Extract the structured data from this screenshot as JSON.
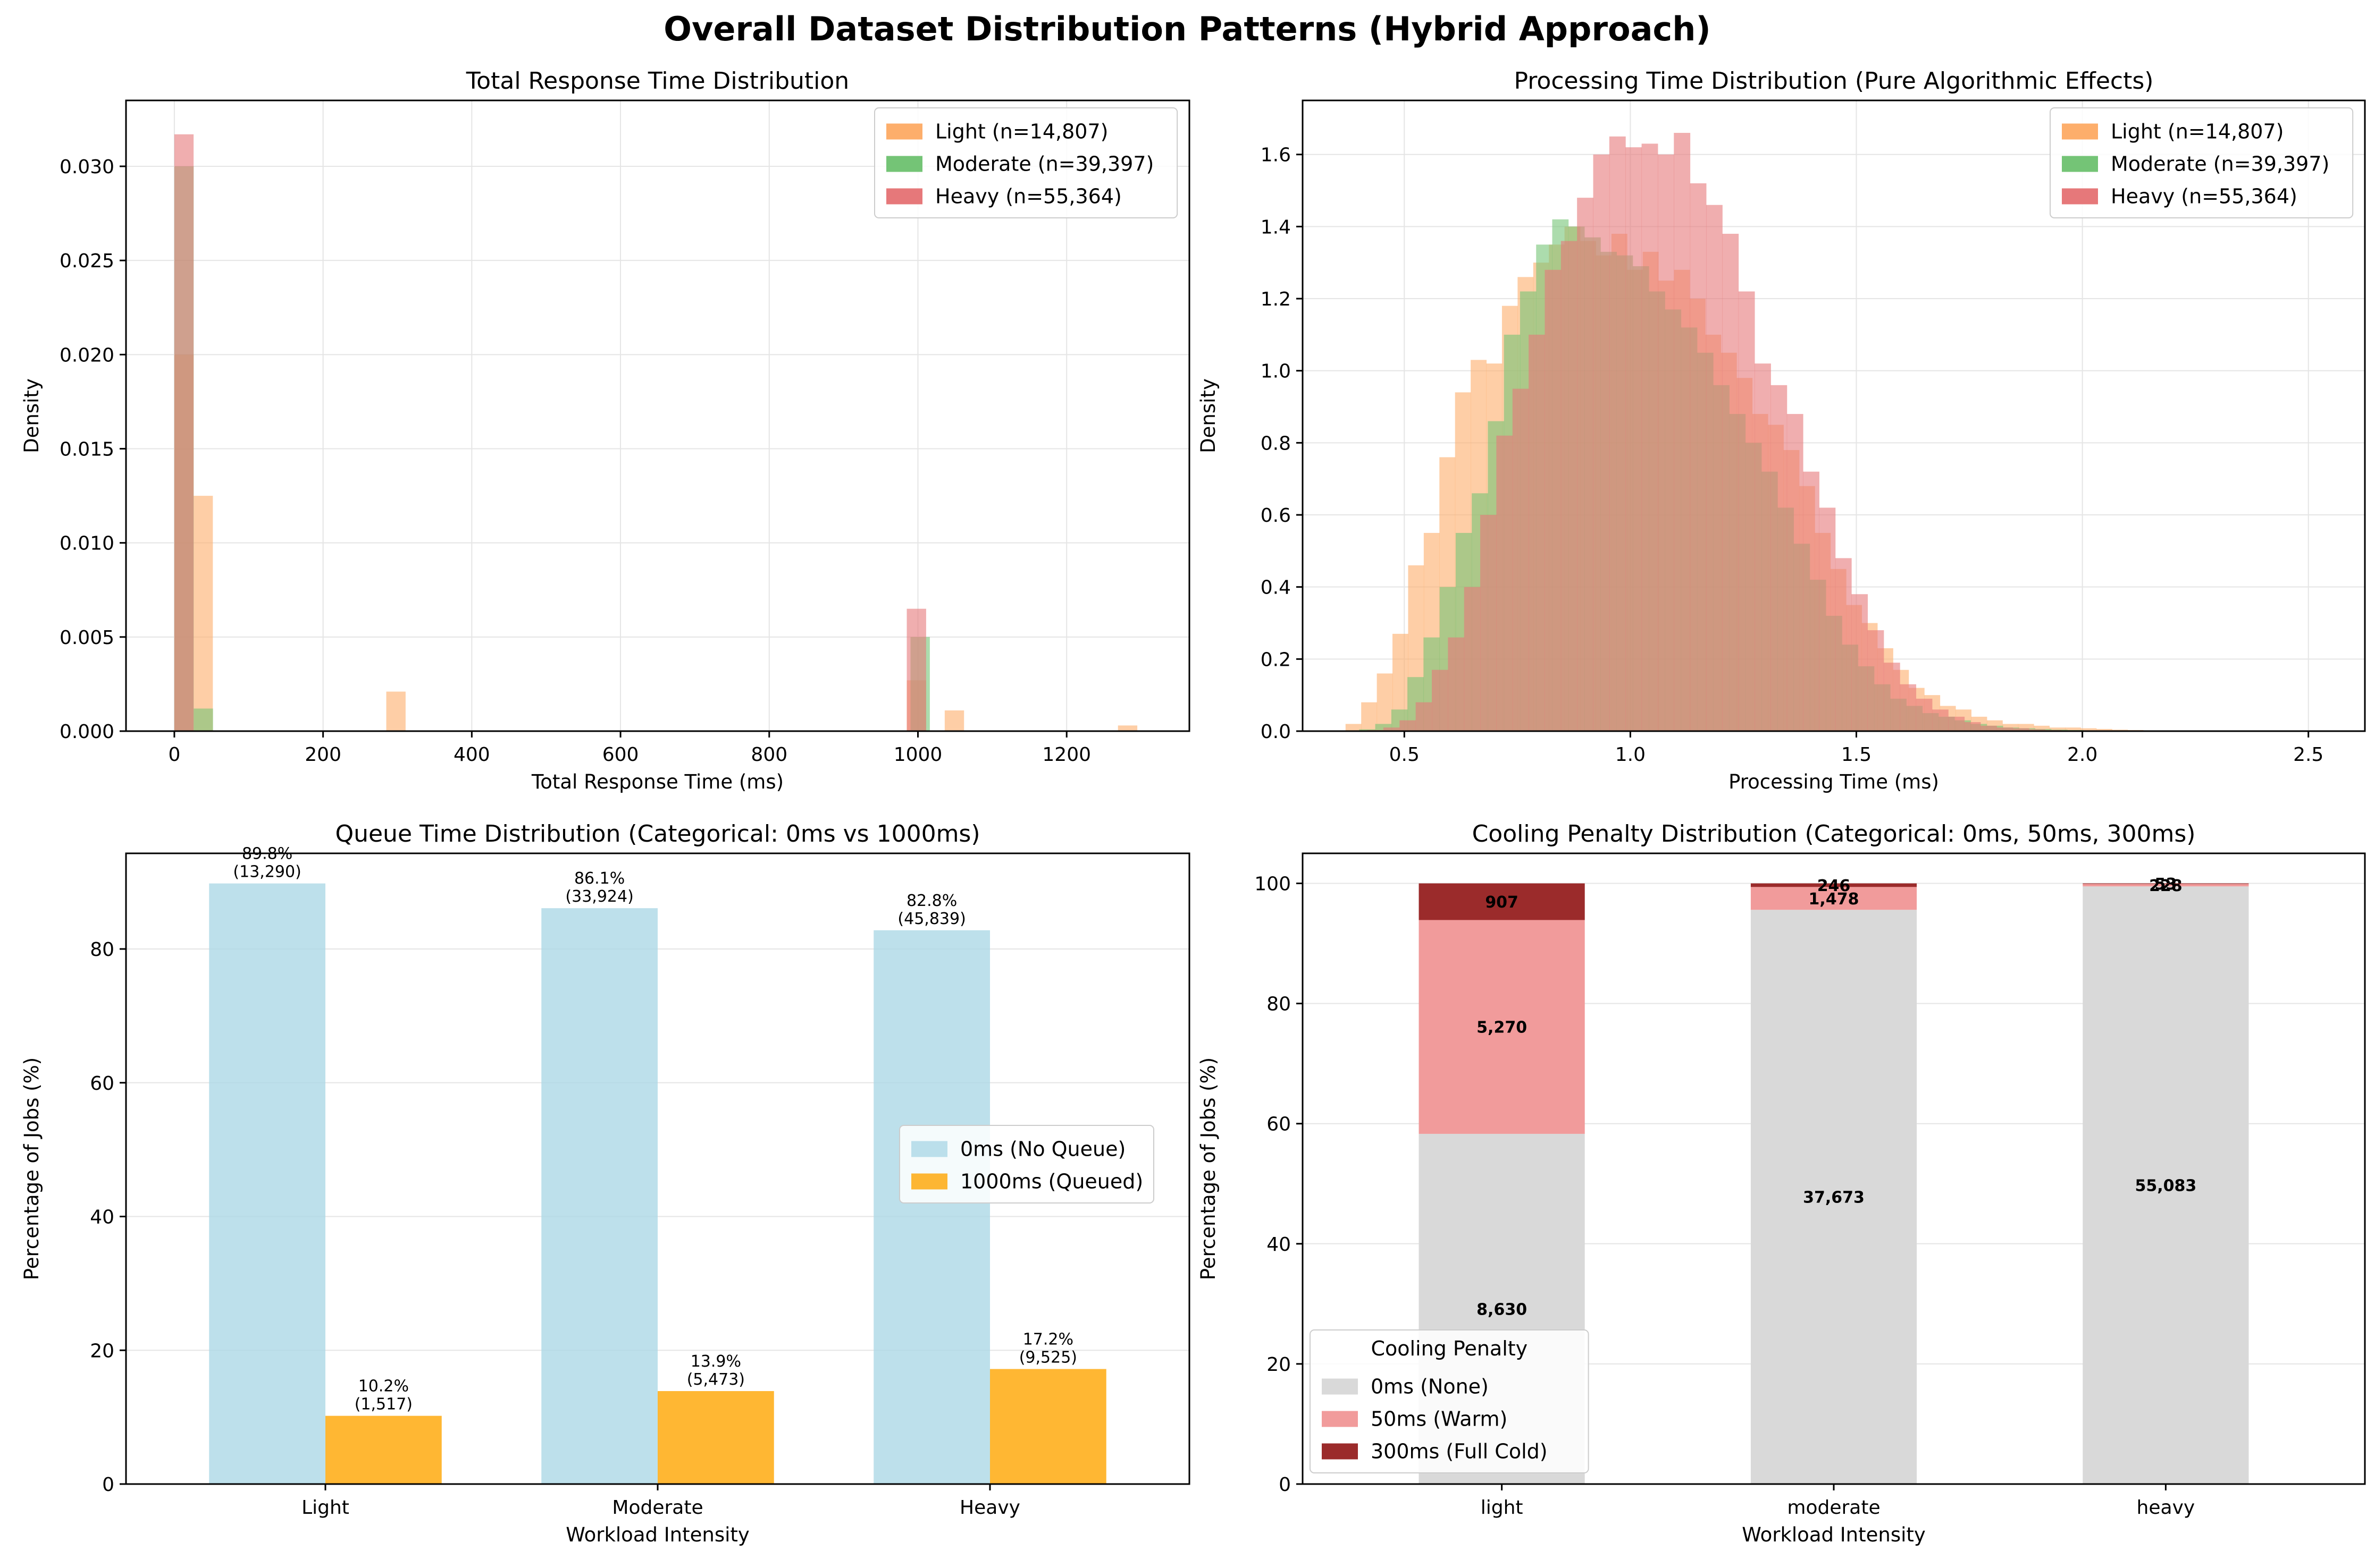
{
  "suptitle": "Overall Dataset Distribution Patterns (Hybrid Approach)",
  "colors": {
    "light": "#fdae6b",
    "moderate": "#74c476",
    "heavy": "#e6787a",
    "overlap_light_heavy": "#b34d2c",
    "overlap_moderate_heavy": "#8a5a2a",
    "no_queue": "#add8e6",
    "queued": "#ffa500",
    "cool_none": "#d9d9d9",
    "cool_warm": "#f19b9b",
    "cool_cold": "#9b2b2b",
    "grid": "#e5e5e5",
    "axis": "#000000"
  },
  "chart_data": [
    {
      "id": "total_response",
      "type": "histogram",
      "title": "Total Response Time Distribution",
      "xlabel": "Total Response Time (ms)",
      "ylabel": "Density",
      "xlim": [
        -65,
        1365
      ],
      "ylim": [
        0,
        0.0335
      ],
      "xticks": [
        0,
        200,
        400,
        600,
        800,
        1000,
        1200
      ],
      "yticks": [
        0.0,
        0.005,
        0.01,
        0.015,
        0.02,
        0.025,
        0.03
      ],
      "ytick_decimals": 3,
      "grid": true,
      "legend_position": "upper right",
      "series": [
        {
          "name": "Light (n=14,807)",
          "key": "light",
          "bins": [
            [
              0,
              25.9,
              0.02
            ],
            [
              25.9,
              51.8,
              0.0125
            ],
            [
              285,
              311,
              0.0021
            ],
            [
              985,
              1011,
              0.0027
            ],
            [
              1036,
              1062,
              0.0011
            ],
            [
              1269,
              1295,
              0.0003
            ]
          ]
        },
        {
          "name": "Moderate (n=39,397)",
          "key": "moderate",
          "bins": [
            [
              0,
              26,
              0.03
            ],
            [
              26,
              52,
              0.0012
            ],
            [
              990,
              1016,
              0.005
            ]
          ]
        },
        {
          "name": "Heavy (n=55,364)",
          "key": "heavy",
          "bins": [
            [
              0,
              25.9,
              0.0317
            ],
            [
              985,
              1011,
              0.0065
            ]
          ]
        }
      ]
    },
    {
      "id": "processing_time",
      "type": "histogram",
      "title": "Processing Time Distribution (Pure Algorithmic Effects)",
      "xlabel": "Processing Time (ms)",
      "ylabel": "Density",
      "xlim": [
        0.275,
        2.625
      ],
      "ylim": [
        0,
        1.75
      ],
      "xticks": [
        0.5,
        1.0,
        1.5,
        2.0,
        2.5
      ],
      "yticks": [
        0.0,
        0.2,
        0.4,
        0.6,
        0.8,
        1.0,
        1.2,
        1.4,
        1.6
      ],
      "ytick_decimals": 1,
      "grid": true,
      "legend_position": "upper right",
      "series": [
        {
          "name": "Light (n=14,807)",
          "key": "light",
          "start": 0.37,
          "width": 0.0346,
          "values": [
            0.02,
            0.08,
            0.16,
            0.27,
            0.46,
            0.55,
            0.76,
            0.94,
            1.03,
            1.02,
            1.18,
            1.26,
            1.3,
            1.35,
            1.4,
            1.36,
            1.32,
            1.38,
            1.28,
            1.33,
            1.25,
            1.28,
            1.2,
            1.1,
            1.05,
            0.98,
            0.88,
            0.85,
            0.78,
            0.68,
            0.55,
            0.45,
            0.35,
            0.3,
            0.23,
            0.17,
            0.12,
            0.1,
            0.07,
            0.06,
            0.04,
            0.03,
            0.02,
            0.02,
            0.015,
            0.01,
            0.01,
            0.008,
            0.006,
            0.004,
            0.003,
            0.002,
            0.002,
            0.002,
            0.001,
            0.001,
            0.001,
            0.001,
            0.001,
            0.001,
            0.001
          ]
        },
        {
          "name": "Moderate (n=39,397)",
          "key": "moderate",
          "start": 0.4,
          "width": 0.0356,
          "values": [
            0.005,
            0.02,
            0.06,
            0.15,
            0.26,
            0.4,
            0.55,
            0.66,
            0.86,
            1.1,
            1.22,
            1.35,
            1.42,
            1.4,
            1.37,
            1.33,
            1.32,
            1.29,
            1.22,
            1.17,
            1.12,
            1.05,
            0.96,
            0.88,
            0.8,
            0.72,
            0.62,
            0.52,
            0.42,
            0.32,
            0.24,
            0.18,
            0.13,
            0.09,
            0.07,
            0.05,
            0.04,
            0.03,
            0.02,
            0.015,
            0.01,
            0.008,
            0.006,
            0.004,
            0.003,
            0.002,
            0.002,
            0.001,
            0.001,
            0.001
          ]
        },
        {
          "name": "Heavy (n=55,364)",
          "key": "heavy",
          "start": 0.418,
          "width": 0.0357,
          "values": [
            0.003,
            0.01,
            0.03,
            0.08,
            0.17,
            0.26,
            0.4,
            0.6,
            0.82,
            0.95,
            1.1,
            1.28,
            1.36,
            1.48,
            1.6,
            1.65,
            1.62,
            1.63,
            1.6,
            1.66,
            1.52,
            1.46,
            1.38,
            1.22,
            1.02,
            0.96,
            0.88,
            0.72,
            0.62,
            0.48,
            0.38,
            0.28,
            0.19,
            0.13,
            0.09,
            0.06,
            0.04,
            0.025,
            0.015,
            0.01,
            0.008,
            0.005,
            0.003,
            0.002,
            0.001,
            0.001,
            0.001,
            0.001,
            0.001,
            0.001,
            0.001,
            0.001,
            0.001,
            0.001,
            0.001,
            0.001,
            0.001,
            0.001
          ]
        }
      ]
    },
    {
      "id": "queue_time",
      "type": "bar",
      "title": "Queue Time Distribution (Categorical: 0ms vs 1000ms)",
      "xlabel": "Workload Intensity",
      "ylabel": "Percentage of Jobs (%)",
      "ylim": [
        0,
        94.3
      ],
      "yticks": [
        0,
        20,
        40,
        60,
        80
      ],
      "categories": [
        "Light",
        "Moderate",
        "Heavy"
      ],
      "grid": true,
      "legend_position": "center right",
      "series": [
        {
          "name": "0ms (No Queue)",
          "key": "no_queue",
          "values": [
            89.8,
            86.1,
            82.8
          ],
          "labels": [
            "89.8%",
            "86.1%",
            "82.8%"
          ],
          "counts": [
            "(13,290)",
            "(33,924)",
            "(45,839)"
          ]
        },
        {
          "name": "1000ms (Queued)",
          "key": "queued",
          "values": [
            10.2,
            13.9,
            17.2
          ],
          "labels": [
            "10.2%",
            "13.9%",
            "17.2%"
          ],
          "counts": [
            "(1,517)",
            "(5,473)",
            "(9,525)"
          ]
        }
      ]
    },
    {
      "id": "cooling_penalty",
      "type": "stacked_bar",
      "title": "Cooling Penalty Distribution (Categorical: 0ms, 50ms, 300ms)",
      "xlabel": "Workload Intensity",
      "ylabel": "Percentage of Jobs (%)",
      "ylim": [
        0,
        105
      ],
      "yticks": [
        0,
        20,
        40,
        60,
        80,
        100
      ],
      "categories": [
        "light",
        "moderate",
        "heavy"
      ],
      "legend_title": "Cooling Penalty",
      "grid": true,
      "legend_position": "lower left",
      "series": [
        {
          "name": "0ms (None)",
          "key": "cool_none",
          "values": [
            58.3,
            95.6,
            99.5
          ],
          "labels": [
            "8,630",
            "37,673",
            "55,083"
          ]
        },
        {
          "name": "50ms (Warm)",
          "key": "cool_warm",
          "values": [
            35.6,
            3.8,
            0.4
          ],
          "labels": [
            "5,270",
            "1,478",
            "228"
          ]
        },
        {
          "name": "300ms (Full Cold)",
          "key": "cool_cold",
          "values": [
            6.1,
            0.6,
            0.1
          ],
          "labels": [
            "907",
            "246",
            "53"
          ]
        }
      ]
    }
  ]
}
